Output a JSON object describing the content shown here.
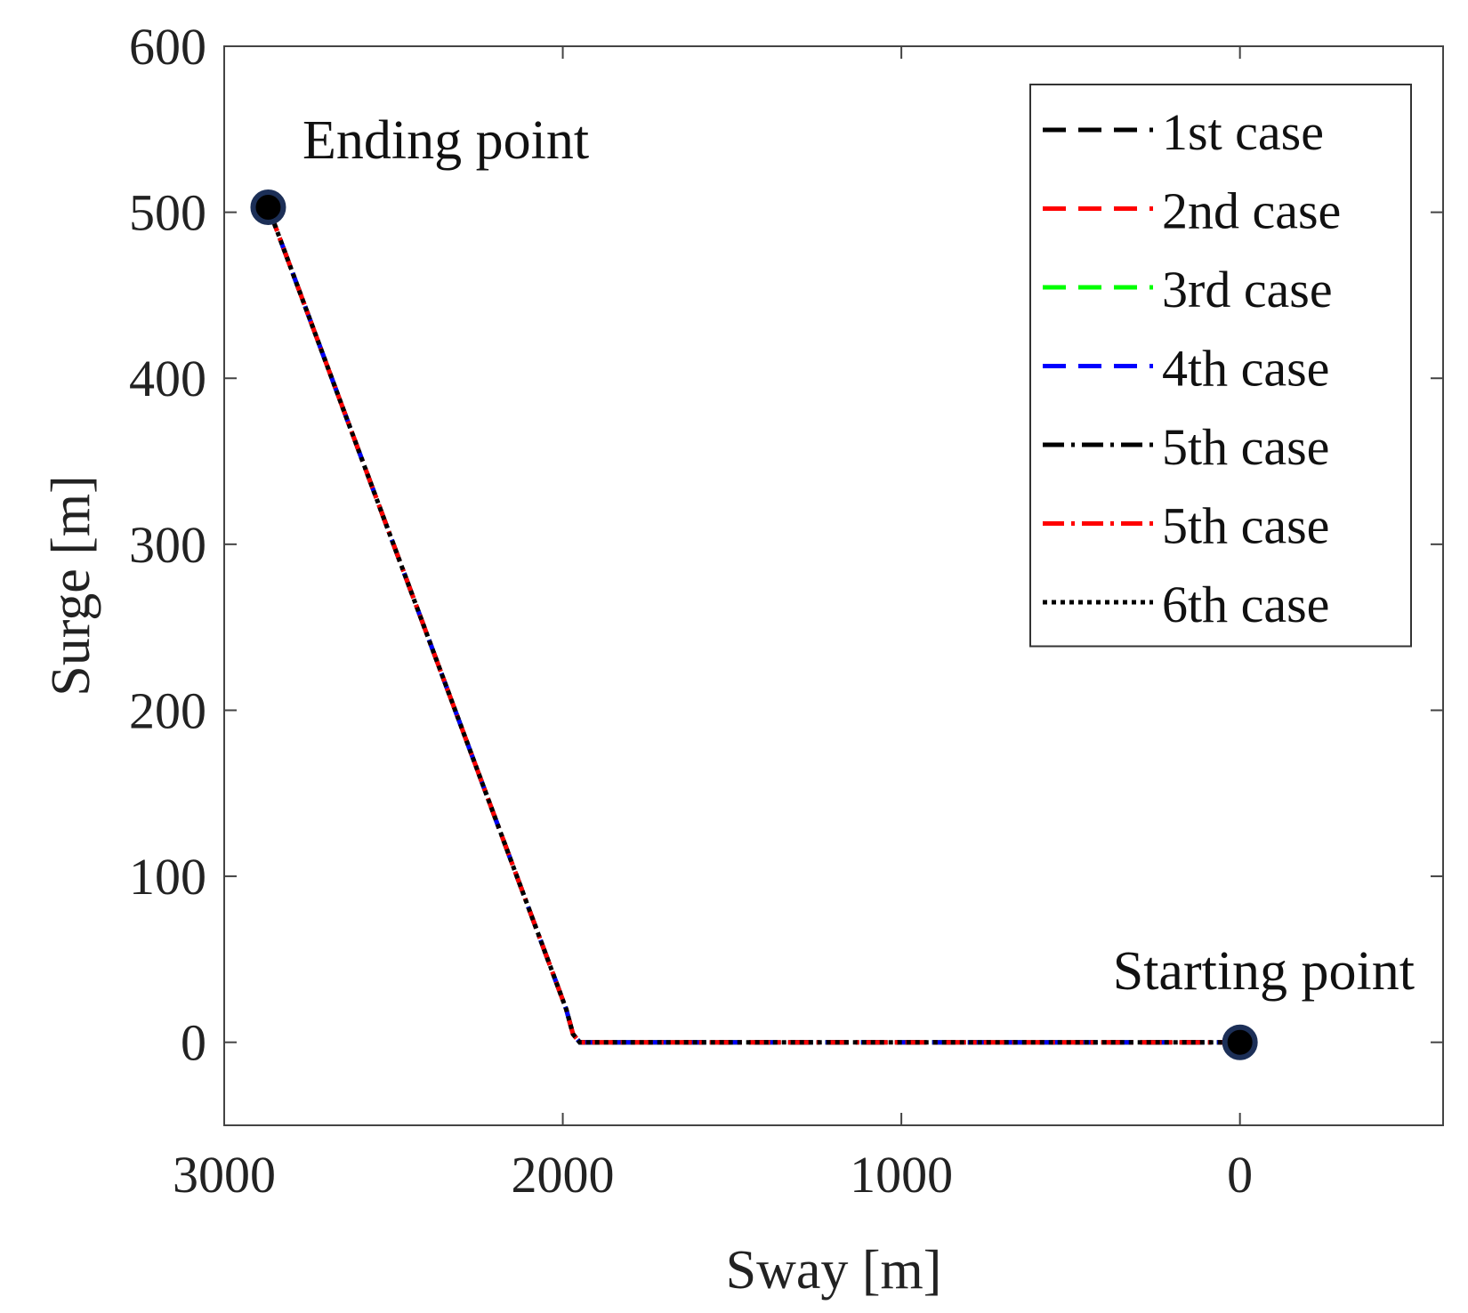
{
  "chart_data": {
    "type": "line",
    "xlabel": "Sway [m]",
    "ylabel": "Surge [m]",
    "xlim": [
      3000,
      -600
    ],
    "ylim": [
      -50,
      600
    ],
    "x_reversed": true,
    "xticks": [
      3000,
      2000,
      1000,
      0
    ],
    "yticks": [
      0,
      100,
      200,
      300,
      400,
      500,
      600
    ],
    "grid": false,
    "legend_position": "top-right",
    "series": [
      {
        "name": "1st case",
        "color": "#000000",
        "style": "dashed",
        "points": [
          [
            0,
            0
          ],
          [
            1950,
            0
          ],
          [
            1970,
            5
          ],
          [
            1990,
            20
          ],
          [
            2870,
            503
          ]
        ]
      },
      {
        "name": "2nd case",
        "color": "#ff0000",
        "style": "dashed",
        "points": [
          [
            0,
            0
          ],
          [
            1950,
            0
          ],
          [
            1970,
            5
          ],
          [
            1990,
            20
          ],
          [
            2870,
            503
          ]
        ]
      },
      {
        "name": "3rd case",
        "color": "#00ff00",
        "style": "dashed",
        "points": [
          [
            0,
            0
          ],
          [
            1950,
            0
          ],
          [
            1970,
            5
          ],
          [
            1990,
            20
          ],
          [
            2870,
            503
          ]
        ]
      },
      {
        "name": "4th case",
        "color": "#0000ff",
        "style": "dashed",
        "points": [
          [
            0,
            0
          ],
          [
            1950,
            0
          ],
          [
            1970,
            5
          ],
          [
            1990,
            20
          ],
          [
            2870,
            503
          ]
        ]
      },
      {
        "name": "5th case",
        "color": "#000000",
        "style": "dashdot",
        "points": [
          [
            0,
            0
          ],
          [
            1950,
            0
          ],
          [
            1970,
            5
          ],
          [
            1990,
            20
          ],
          [
            2870,
            503
          ]
        ]
      },
      {
        "name": "5th case",
        "color": "#ff0000",
        "style": "dashdot",
        "points": [
          [
            0,
            0
          ],
          [
            1950,
            0
          ],
          [
            1970,
            5
          ],
          [
            1990,
            20
          ],
          [
            2870,
            503
          ]
        ]
      },
      {
        "name": "6th case",
        "color": "#000000",
        "style": "dotted",
        "points": [
          [
            0,
            0
          ],
          [
            1950,
            0
          ],
          [
            1970,
            5
          ],
          [
            1990,
            20
          ],
          [
            2870,
            503
          ]
        ]
      }
    ],
    "markers": [
      {
        "x": 2870,
        "y": 503,
        "label": "Ending point"
      },
      {
        "x": 0,
        "y": 0,
        "label": "Starting point"
      }
    ]
  }
}
